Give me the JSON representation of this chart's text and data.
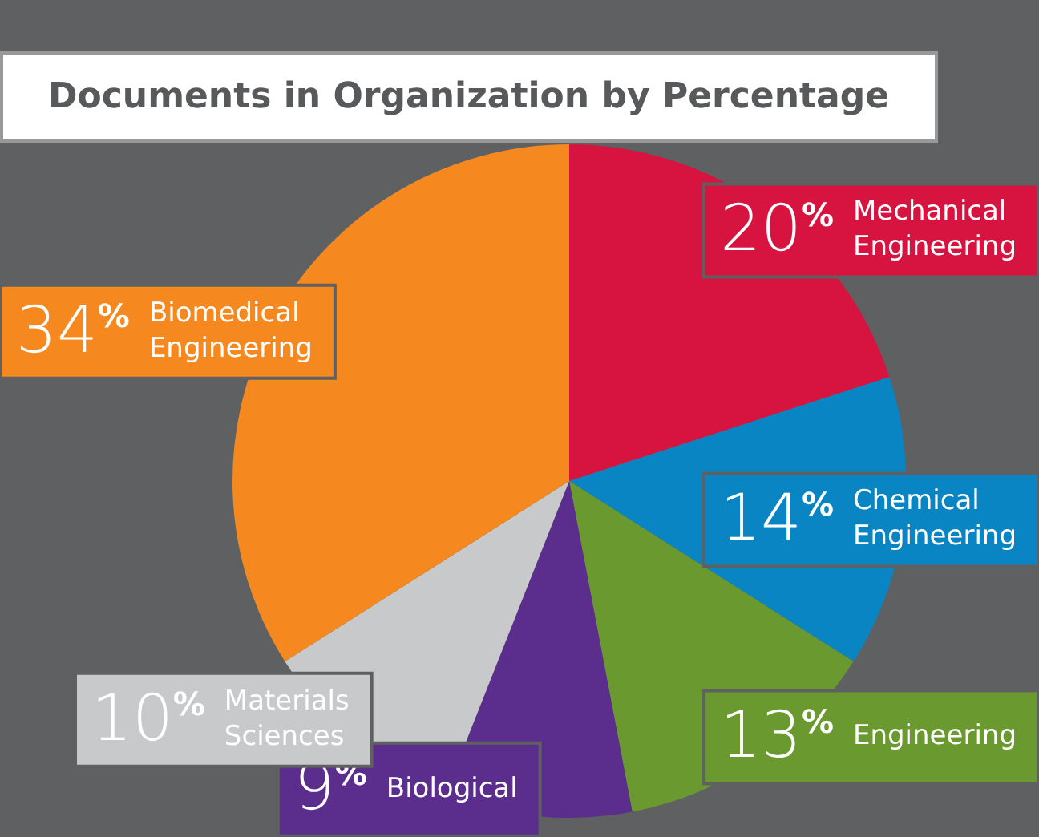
{
  "chart_data": {
    "type": "pie",
    "title": "Documents in Organization by Percentage",
    "categories": [
      "Mechanical Engineering",
      "Chemical Engineering",
      "Engineering",
      "Biological",
      "Materials Sciences",
      "Biomedical Engineering"
    ],
    "values": [
      20,
      14,
      13,
      9,
      10,
      34
    ],
    "colors": [
      "#d7143f",
      "#0a85c4",
      "#6a9a2f",
      "#5b2d8c",
      "#c8c9cb",
      "#f5891f"
    ],
    "value_labels": [
      "20%",
      "14%",
      "13%",
      "9%",
      "10%",
      "34%"
    ],
    "legend": false
  }
}
